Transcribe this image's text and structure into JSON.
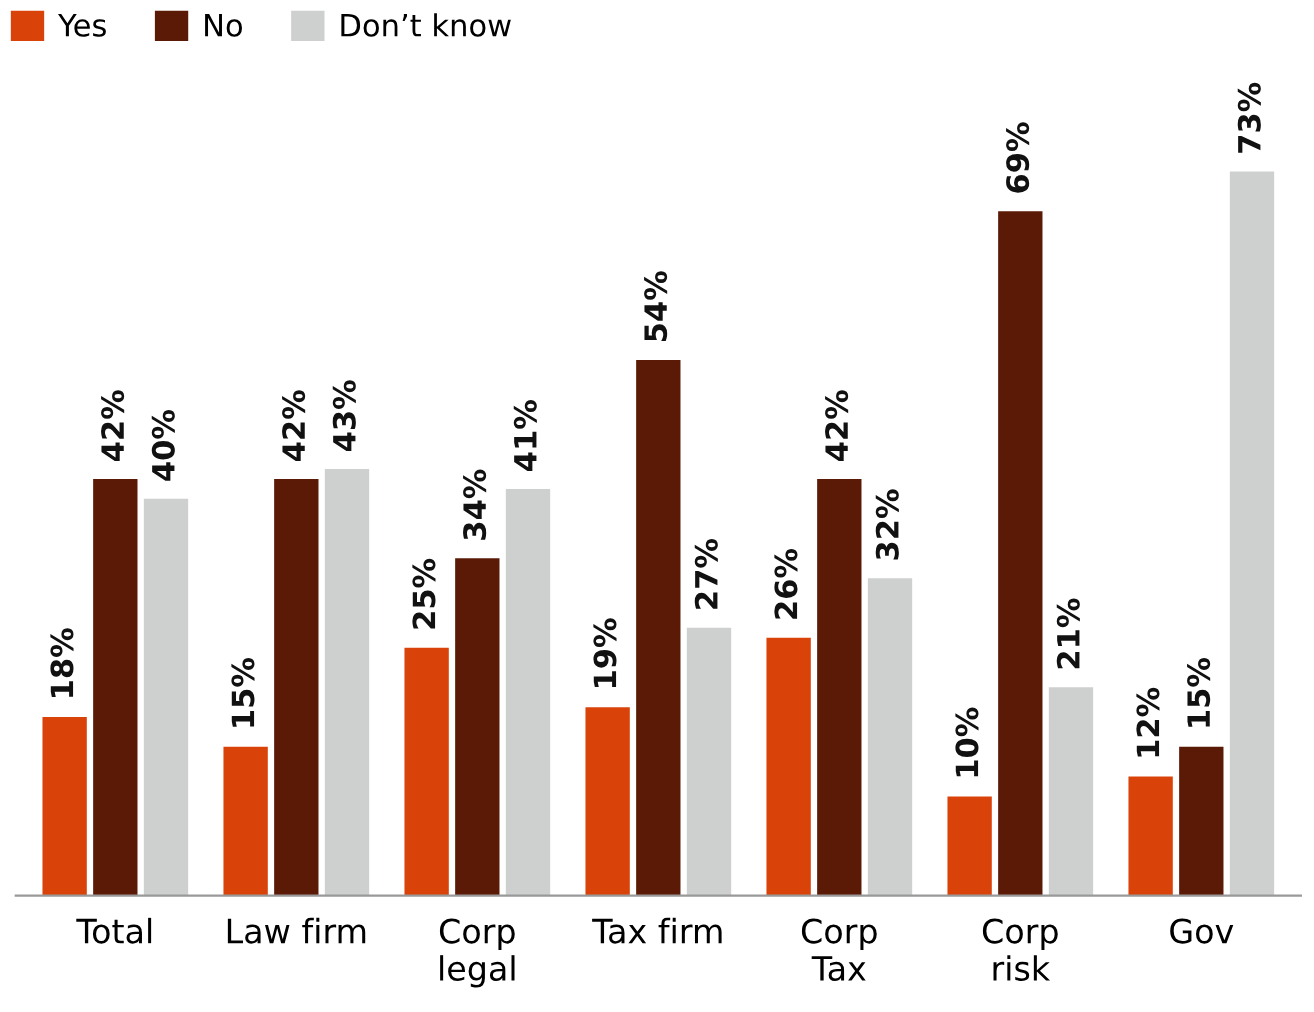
{
  "chart_data": {
    "type": "bar",
    "categories": [
      "Total",
      "Law firm",
      "Corp\nlegal",
      "Tax firm",
      "Corp\nTax",
      "Corp\nrisk",
      "Gov"
    ],
    "series": [
      {
        "name": "Yes",
        "color": "#d9430a",
        "values": [
          18,
          15,
          25,
          19,
          26,
          10,
          12
        ],
        "value_labels": [
          "18%",
          "15%",
          "25%",
          "19%",
          "26%",
          "10%",
          "12%"
        ]
      },
      {
        "name": "No",
        "color": "#5a1a06",
        "values": [
          42,
          42,
          34,
          54,
          42,
          69,
          15
        ],
        "value_labels": [
          "42%",
          "42%",
          "34%",
          "54%",
          "42%",
          "69%",
          "15%"
        ]
      },
      {
        "name": "Don’t know",
        "color": "#cdd0cf",
        "values": [
          40,
          43,
          41,
          27,
          32,
          21,
          73
        ],
        "value_labels": [
          "40%",
          "43%",
          "41%",
          "27%",
          "32%",
          "21%",
          "73%"
        ]
      }
    ],
    "legend": "top left",
    "grid": false
  }
}
